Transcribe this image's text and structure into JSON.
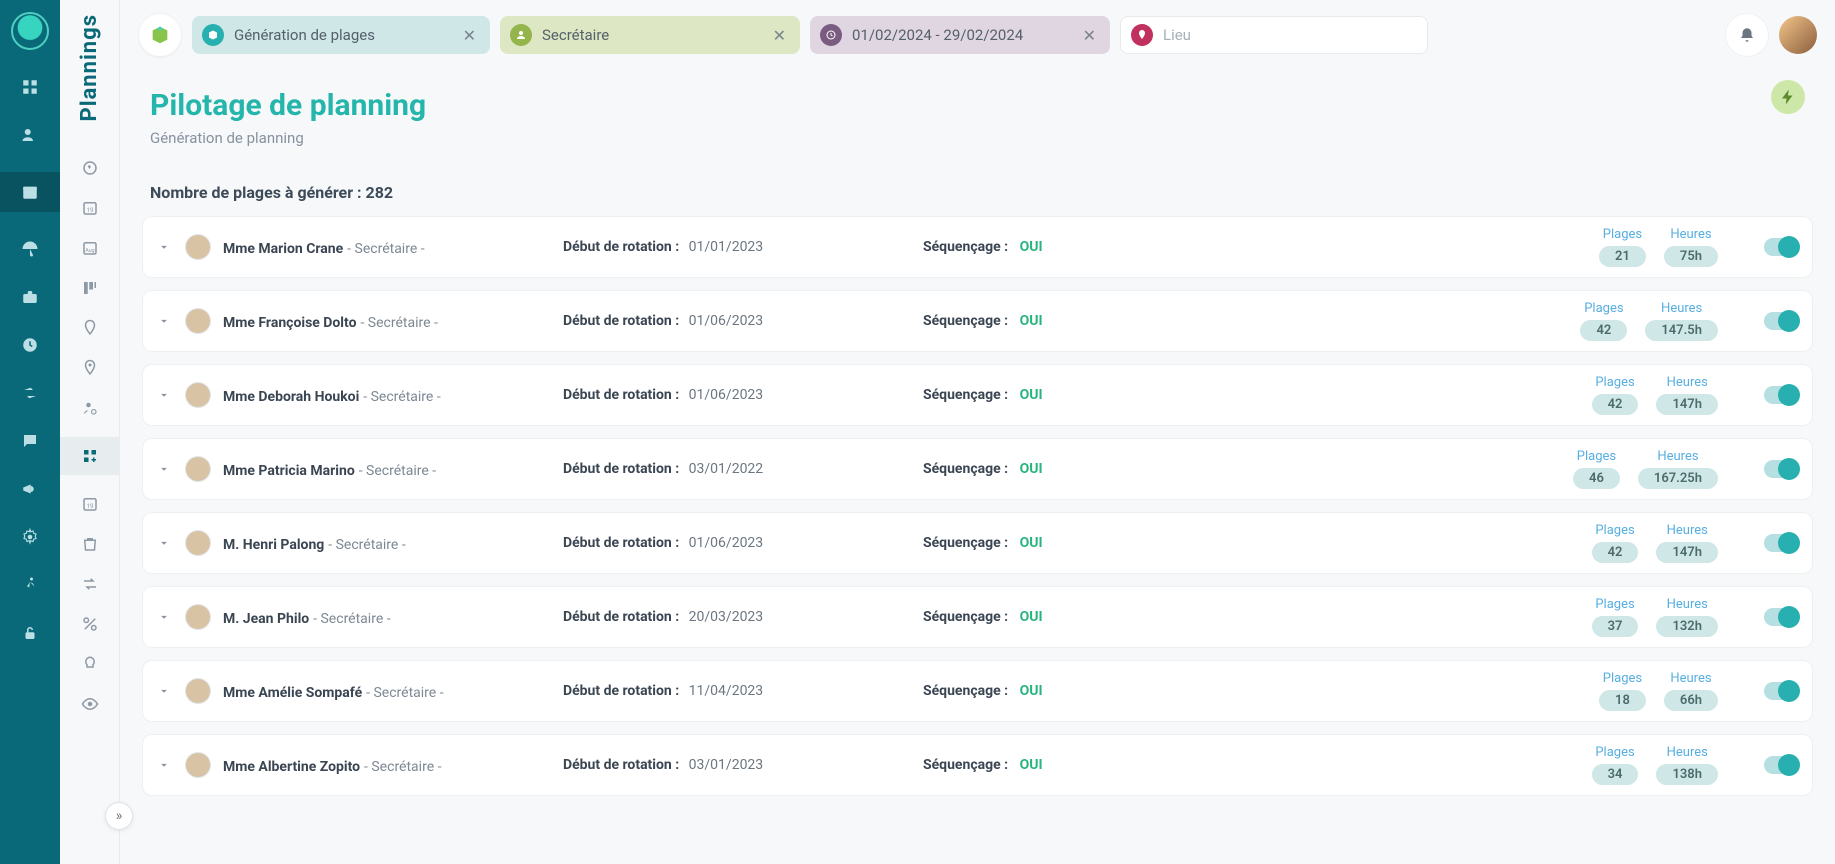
{
  "app": {
    "title": "Plannings"
  },
  "topbar": {
    "filter_box": {
      "text": "Génération de plages",
      "icon_color": "#28b0b1"
    },
    "filter_role": {
      "text": "Secrétaire",
      "icon_color": "#94b54b"
    },
    "filter_date": {
      "text": "01/02/2024 - 29/02/2024",
      "icon_color": "#7a5c80"
    },
    "location": {
      "placeholder": "Lieu",
      "icon_color": "#c1315f"
    }
  },
  "header": {
    "title": "Pilotage de planning",
    "subtitle": "Génération de planning"
  },
  "count": {
    "label": "Nombre de plages à générer : ",
    "value": "282"
  },
  "labels": {
    "rot": "Début de rotation :",
    "seq": "Séquençage :",
    "oui": "OUI",
    "plages": "Plages",
    "heures": "Heures"
  },
  "rows": [
    {
      "name": "Mme Marion Crane",
      "role": "- Secrétaire -",
      "rot": "01/01/2023",
      "plages": "21",
      "heures": "75h"
    },
    {
      "name": "Mme Françoise Dolto",
      "role": "- Secrétaire -",
      "rot": "01/06/2023",
      "plages": "42",
      "heures": "147.5h"
    },
    {
      "name": "Mme Deborah Houkoi",
      "role": "- Secrétaire -",
      "rot": "01/06/2023",
      "plages": "42",
      "heures": "147h"
    },
    {
      "name": "Mme Patricia Marino",
      "role": "- Secrétaire -",
      "rot": "03/01/2022",
      "plages": "46",
      "heures": "167.25h"
    },
    {
      "name": "M. Henri Palong",
      "role": "- Secrétaire -",
      "rot": "01/06/2023",
      "plages": "42",
      "heures": "147h"
    },
    {
      "name": "M. Jean Philo",
      "role": "- Secrétaire -",
      "rot": "20/03/2023",
      "plages": "37",
      "heures": "132h"
    },
    {
      "name": "Mme Amélie Sompafé",
      "role": "- Secrétaire -",
      "rot": "11/04/2023",
      "plages": "18",
      "heures": "66h"
    },
    {
      "name": "Mme Albertine Zopito",
      "role": "- Secrétaire -",
      "rot": "03/01/2023",
      "plages": "34",
      "heures": "138h"
    }
  ],
  "colors": {
    "brand": "#0a6978",
    "accent": "#25b6ab",
    "pill_bg": "#cfe7e7",
    "metric_label": "#57aee0"
  }
}
